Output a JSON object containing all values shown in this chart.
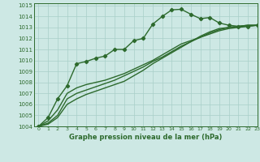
{
  "bg_color": "#cde8e4",
  "grid_color": "#a8cfc8",
  "line_color": "#2d6a2d",
  "title": "Graphe pression niveau de la mer (hPa)",
  "xlim": [
    -0.5,
    23
  ],
  "ylim": [
    1004,
    1015.2
  ],
  "yticks": [
    1004,
    1005,
    1006,
    1007,
    1008,
    1009,
    1010,
    1011,
    1012,
    1013,
    1014,
    1015
  ],
  "xticks": [
    0,
    1,
    2,
    3,
    4,
    5,
    6,
    7,
    8,
    9,
    10,
    11,
    12,
    13,
    14,
    15,
    16,
    17,
    18,
    19,
    20,
    21,
    22,
    23
  ],
  "series": [
    {
      "x": [
        0,
        1,
        2,
        3,
        4,
        5,
        6,
        7,
        8,
        9,
        10,
        11,
        12,
        13,
        14,
        15,
        16,
        17,
        18,
        19,
        20,
        21,
        22,
        23
      ],
      "y": [
        1004.0,
        1004.8,
        1006.5,
        1007.7,
        1009.7,
        1009.9,
        1010.2,
        1010.4,
        1011.0,
        1011.0,
        1011.8,
        1012.0,
        1013.3,
        1014.0,
        1014.6,
        1014.65,
        1014.2,
        1013.8,
        1013.9,
        1013.4,
        1013.2,
        1013.1,
        1013.1,
        1013.2
      ],
      "marker": "D",
      "markersize": 2.2,
      "linewidth": 1.0
    },
    {
      "x": [
        0,
        1,
        2,
        3,
        4,
        5,
        6,
        7,
        8,
        9,
        10,
        11,
        12,
        13,
        14,
        15,
        16,
        17,
        18,
        19,
        20,
        21,
        22,
        23
      ],
      "y": [
        1004.0,
        1004.5,
        1005.5,
        1007.0,
        1007.5,
        1007.8,
        1008.0,
        1008.2,
        1008.5,
        1008.8,
        1009.2,
        1009.6,
        1010.0,
        1010.5,
        1011.0,
        1011.5,
        1011.8,
        1012.1,
        1012.4,
        1012.7,
        1012.9,
        1013.0,
        1013.1,
        1013.2
      ],
      "marker": null,
      "markersize": 0,
      "linewidth": 1.0
    },
    {
      "x": [
        0,
        1,
        2,
        3,
        4,
        5,
        6,
        7,
        8,
        9,
        10,
        11,
        12,
        13,
        14,
        15,
        16,
        17,
        18,
        19,
        20,
        21,
        22,
        23
      ],
      "y": [
        1004.0,
        1004.3,
        1005.0,
        1006.5,
        1007.0,
        1007.3,
        1007.6,
        1007.9,
        1008.2,
        1008.6,
        1009.0,
        1009.4,
        1009.9,
        1010.3,
        1010.8,
        1011.3,
        1011.7,
        1012.1,
        1012.5,
        1012.8,
        1013.0,
        1013.1,
        1013.2,
        1013.2
      ],
      "marker": null,
      "markersize": 0,
      "linewidth": 1.0
    },
    {
      "x": [
        0,
        1,
        2,
        3,
        4,
        5,
        6,
        7,
        8,
        9,
        10,
        11,
        12,
        13,
        14,
        15,
        16,
        17,
        18,
        19,
        20,
        21,
        22,
        23
      ],
      "y": [
        1004.0,
        1004.2,
        1004.8,
        1006.0,
        1006.5,
        1006.9,
        1007.2,
        1007.5,
        1007.8,
        1008.1,
        1008.6,
        1009.1,
        1009.7,
        1010.2,
        1010.7,
        1011.2,
        1011.7,
        1012.2,
        1012.6,
        1012.9,
        1013.0,
        1013.1,
        1013.2,
        1013.2
      ],
      "marker": null,
      "markersize": 0,
      "linewidth": 1.0
    }
  ],
  "tick_fontsize": 5.0,
  "title_fontsize": 6.0,
  "fig_width": 3.2,
  "fig_height": 2.0,
  "dpi": 100
}
